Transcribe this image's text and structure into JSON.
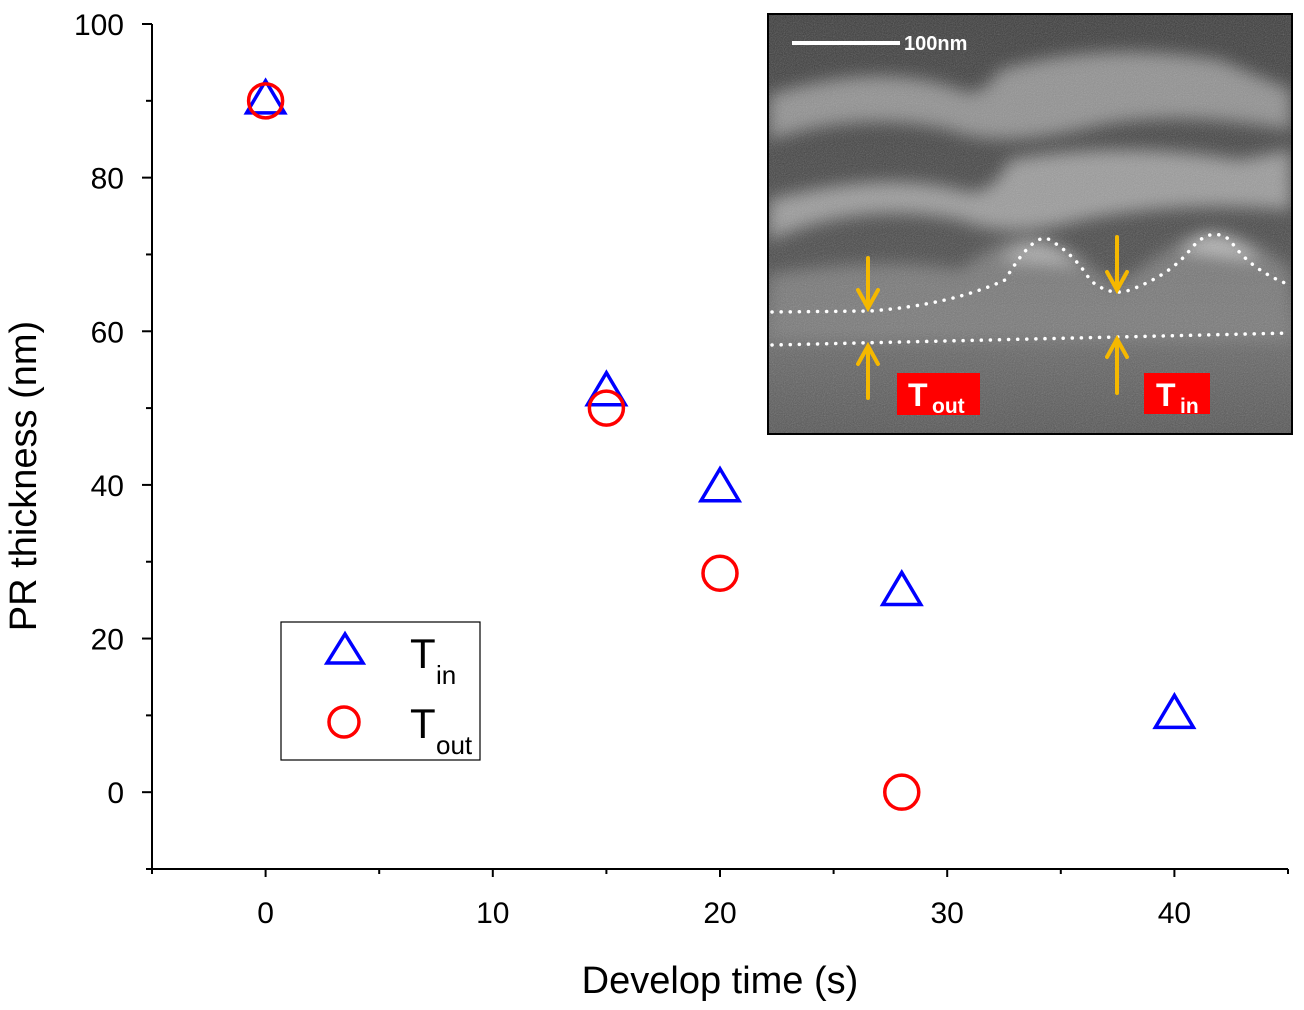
{
  "chart_data": {
    "type": "scatter",
    "title": "",
    "xlabel": "Develop time (s)",
    "ylabel": "PR thickness (nm)",
    "xlim": [
      -5,
      45
    ],
    "ylim": [
      -10,
      100
    ],
    "xticks": [
      0,
      10,
      20,
      30,
      40
    ],
    "yticks": [
      0,
      20,
      40,
      60,
      80,
      100
    ],
    "grid": false,
    "legend_position": "bottom-left",
    "series": [
      {
        "name": "T",
        "subscript": "in",
        "marker": "triangle",
        "color": "#0000ff",
        "x": [
          0,
          15,
          20,
          28,
          40
        ],
        "y": [
          90,
          52,
          39.5,
          26,
          10
        ]
      },
      {
        "name": "T",
        "subscript": "out",
        "marker": "circle",
        "color": "#ff0000",
        "x": [
          0,
          15,
          20,
          28
        ],
        "y": [
          90,
          50,
          28.5,
          0
        ]
      }
    ],
    "inset": {
      "scale_bar_label": "100nm",
      "label_out_main": "T",
      "label_out_sub": "out",
      "label_in_main": "T",
      "label_in_sub": "in",
      "arrow_color": "#f5b800",
      "label_bg": "#ff0000"
    }
  }
}
